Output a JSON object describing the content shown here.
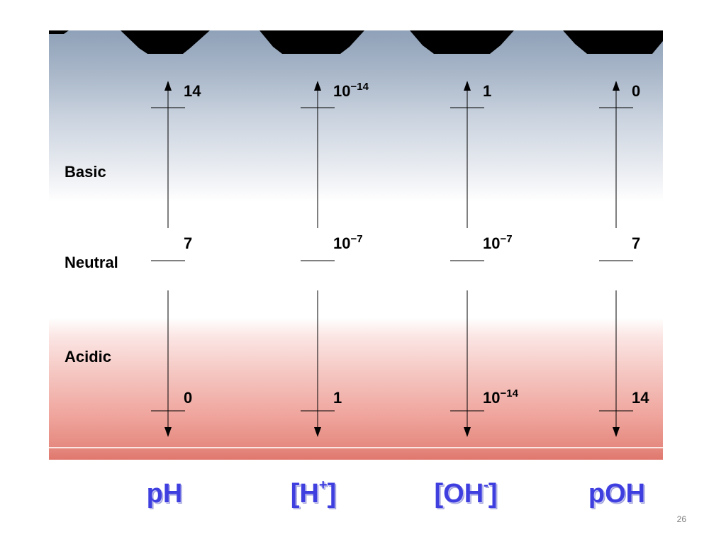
{
  "regions": {
    "basic": "Basic",
    "neutral": "Neutral",
    "acidic": "Acidic"
  },
  "columns": [
    {
      "id": "ph",
      "title": "pH",
      "title_sup": "",
      "top": {
        "base": "14",
        "exp": ""
      },
      "middle": {
        "base": "7",
        "exp": ""
      },
      "bottom": {
        "base": "0",
        "exp": ""
      }
    },
    {
      "id": "h",
      "title": "[H",
      "title_sup": "+",
      "title_end": "]",
      "top": {
        "base": "10",
        "exp": "−14"
      },
      "middle": {
        "base": "10",
        "exp": "−7"
      },
      "bottom": {
        "base": "1",
        "exp": ""
      }
    },
    {
      "id": "oh",
      "title": "[OH",
      "title_sup": "-",
      "title_end": "]",
      "top": {
        "base": "1",
        "exp": ""
      },
      "middle": {
        "base": "10",
        "exp": "−7"
      },
      "bottom": {
        "base": "10",
        "exp": "−14"
      }
    },
    {
      "id": "poh",
      "title": "pOH",
      "title_sup": "",
      "top": {
        "base": "0",
        "exp": ""
      },
      "middle": {
        "base": "7",
        "exp": ""
      },
      "bottom": {
        "base": "14",
        "exp": ""
      }
    }
  ],
  "slide_number": "26",
  "colors": {
    "title_blue": "#3f3fe0",
    "basic_top": "#8fa1b8",
    "acidic_bottom": "#e0776d"
  }
}
